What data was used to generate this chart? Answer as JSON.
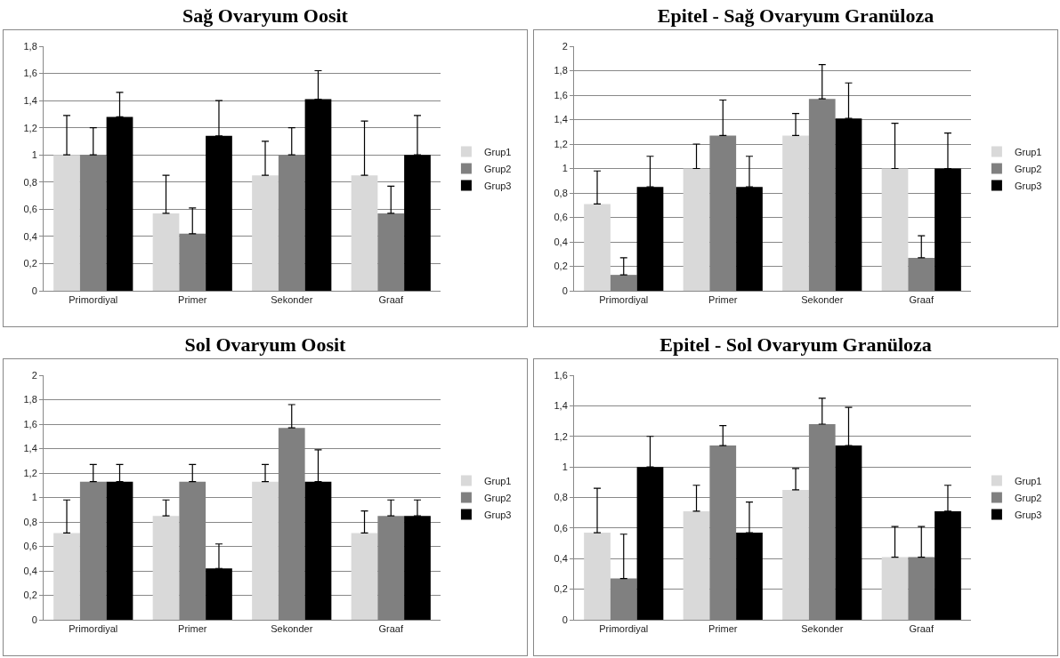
{
  "chart_data": [
    {
      "type": "bar",
      "title": "Sağ Ovaryum Oosit",
      "categories": [
        "Primordiyal",
        "Primer",
        "Sekonder",
        "Graaf"
      ],
      "ylim": [
        0,
        1.8
      ],
      "yticks": [
        0,
        {
          "value": 0.2,
          "label": "0,2"
        },
        {
          "value": 0.4,
          "label": "0,4"
        },
        {
          "value": 0.6,
          "label": "0,6"
        },
        {
          "value": 0.8,
          "label": "0,8"
        },
        1,
        {
          "value": 1.2,
          "label": "1,2"
        },
        {
          "value": 1.4,
          "label": "1,4"
        },
        {
          "value": 1.6,
          "label": "1,6"
        },
        {
          "value": 1.8,
          "label": "1,8"
        }
      ],
      "grid": "y",
      "legend": "right",
      "series": [
        {
          "name": "Grup1",
          "color": "#d9d9d9",
          "values": [
            1.0,
            0.57,
            0.85,
            0.85
          ],
          "errors": [
            [
              1.0,
              1.29
            ],
            [
              0.57,
              0.85
            ],
            [
              0.85,
              1.1
            ],
            [
              0.85,
              1.25
            ]
          ]
        },
        {
          "name": "Grup2",
          "color": "#808080",
          "values": [
            1.0,
            0.42,
            1.0,
            0.57
          ],
          "errors": [
            [
              1.0,
              1.2
            ],
            [
              0.42,
              0.61
            ],
            [
              1.0,
              1.2
            ],
            [
              0.57,
              0.77
            ]
          ]
        },
        {
          "name": "Grup3",
          "color": "#000000",
          "values": [
            1.28,
            1.14,
            1.41,
            1.0
          ],
          "errors": [
            [
              1.28,
              1.46
            ],
            [
              1.14,
              1.4
            ],
            [
              1.41,
              1.62
            ],
            [
              1.0,
              1.29
            ]
          ]
        }
      ]
    },
    {
      "type": "bar",
      "title": "Epitel - Sağ Ovaryum Granüloza",
      "categories": [
        "Primordiyal",
        "Primer",
        "Sekonder",
        "Graaf"
      ],
      "ylim": [
        0,
        2
      ],
      "yticks": [
        0,
        {
          "value": 0.2,
          "label": "0,2"
        },
        {
          "value": 0.4,
          "label": "0,4"
        },
        {
          "value": 0.6,
          "label": "0,6"
        },
        {
          "value": 0.8,
          "label": "0,8"
        },
        1,
        {
          "value": 1.2,
          "label": "1,2"
        },
        {
          "value": 1.4,
          "label": "1,4"
        },
        {
          "value": 1.6,
          "label": "1,6"
        },
        {
          "value": 1.8,
          "label": "1,8"
        },
        2
      ],
      "grid": "y",
      "legend": "right",
      "series": [
        {
          "name": "Grup1",
          "color": "#d9d9d9",
          "values": [
            0.71,
            1.0,
            1.27,
            1.0
          ],
          "errors": [
            [
              0.71,
              0.98
            ],
            [
              1.0,
              1.2
            ],
            [
              1.27,
              1.45
            ],
            [
              1.0,
              1.37
            ]
          ]
        },
        {
          "name": "Grup2",
          "color": "#808080",
          "values": [
            0.13,
            1.27,
            1.57,
            0.27
          ],
          "errors": [
            [
              0.13,
              0.27
            ],
            [
              1.27,
              1.56
            ],
            [
              1.57,
              1.85
            ],
            [
              0.27,
              0.45
            ]
          ]
        },
        {
          "name": "Grup3",
          "color": "#000000",
          "values": [
            0.85,
            0.85,
            1.41,
            1.0
          ],
          "errors": [
            [
              0.85,
              1.1
            ],
            [
              0.85,
              1.1
            ],
            [
              1.41,
              1.7
            ],
            [
              1.0,
              1.29
            ]
          ]
        }
      ]
    },
    {
      "type": "bar",
      "title": "Sol Ovaryum Oosit",
      "categories": [
        "Primordiyal",
        "Primer",
        "Sekonder",
        "Graaf"
      ],
      "ylim": [
        0,
        2
      ],
      "yticks": [
        0,
        {
          "value": 0.2,
          "label": "0,2"
        },
        {
          "value": 0.4,
          "label": "0,4"
        },
        {
          "value": 0.6,
          "label": "0,6"
        },
        {
          "value": 0.8,
          "label": "0,8"
        },
        1,
        {
          "value": 1.2,
          "label": "1,2"
        },
        {
          "value": 1.4,
          "label": "1,4"
        },
        {
          "value": 1.6,
          "label": "1,6"
        },
        {
          "value": 1.8,
          "label": "1,8"
        },
        2
      ],
      "grid": "y",
      "legend": "right",
      "series": [
        {
          "name": "Grup1",
          "color": "#d9d9d9",
          "values": [
            0.71,
            0.85,
            1.13,
            0.71
          ],
          "errors": [
            [
              0.71,
              0.98
            ],
            [
              0.85,
              0.98
            ],
            [
              1.13,
              1.27
            ],
            [
              0.71,
              0.89
            ]
          ]
        },
        {
          "name": "Grup2",
          "color": "#808080",
          "values": [
            1.13,
            1.13,
            1.57,
            0.85
          ],
          "errors": [
            [
              1.13,
              1.27
            ],
            [
              1.13,
              1.27
            ],
            [
              1.57,
              1.76
            ],
            [
              0.85,
              0.98
            ]
          ]
        },
        {
          "name": "Grup3",
          "color": "#000000",
          "values": [
            1.13,
            0.42,
            1.13,
            0.85
          ],
          "errors": [
            [
              1.13,
              1.27
            ],
            [
              0.42,
              0.62
            ],
            [
              1.13,
              1.39
            ],
            [
              0.85,
              0.98
            ]
          ]
        }
      ]
    },
    {
      "type": "bar",
      "title": "Epitel - Sol Ovaryum Granüloza",
      "categories": [
        "Primordiyal",
        "Primer",
        "Sekonder",
        "Graaf"
      ],
      "ylim": [
        0,
        1.6
      ],
      "yticks": [
        0,
        {
          "value": 0.2,
          "label": "0,2"
        },
        {
          "value": 0.4,
          "label": "0,4"
        },
        {
          "value": 0.6,
          "label": "0,6"
        },
        {
          "value": 0.8,
          "label": "0,8"
        },
        1,
        {
          "value": 1.2,
          "label": "1,2"
        },
        {
          "value": 1.4,
          "label": "1,4"
        },
        {
          "value": 1.6,
          "label": "1,6"
        }
      ],
      "grid": "y",
      "legend": "right",
      "series": [
        {
          "name": "Grup1",
          "color": "#d9d9d9",
          "values": [
            0.57,
            0.71,
            0.85,
            0.41
          ],
          "errors": [
            [
              0.57,
              0.86
            ],
            [
              0.71,
              0.88
            ],
            [
              0.85,
              0.99
            ],
            [
              0.41,
              0.61
            ]
          ]
        },
        {
          "name": "Grup2",
          "color": "#808080",
          "values": [
            0.27,
            1.14,
            1.28,
            0.41
          ],
          "errors": [
            [
              0.27,
              0.56
            ],
            [
              1.14,
              1.27
            ],
            [
              1.28,
              1.45
            ],
            [
              0.41,
              0.61
            ]
          ]
        },
        {
          "name": "Grup3",
          "color": "#000000",
          "values": [
            1.0,
            0.57,
            1.14,
            0.71
          ],
          "errors": [
            [
              1.0,
              1.2
            ],
            [
              0.57,
              0.77
            ],
            [
              1.14,
              1.39
            ],
            [
              0.71,
              0.88
            ]
          ]
        }
      ]
    }
  ]
}
